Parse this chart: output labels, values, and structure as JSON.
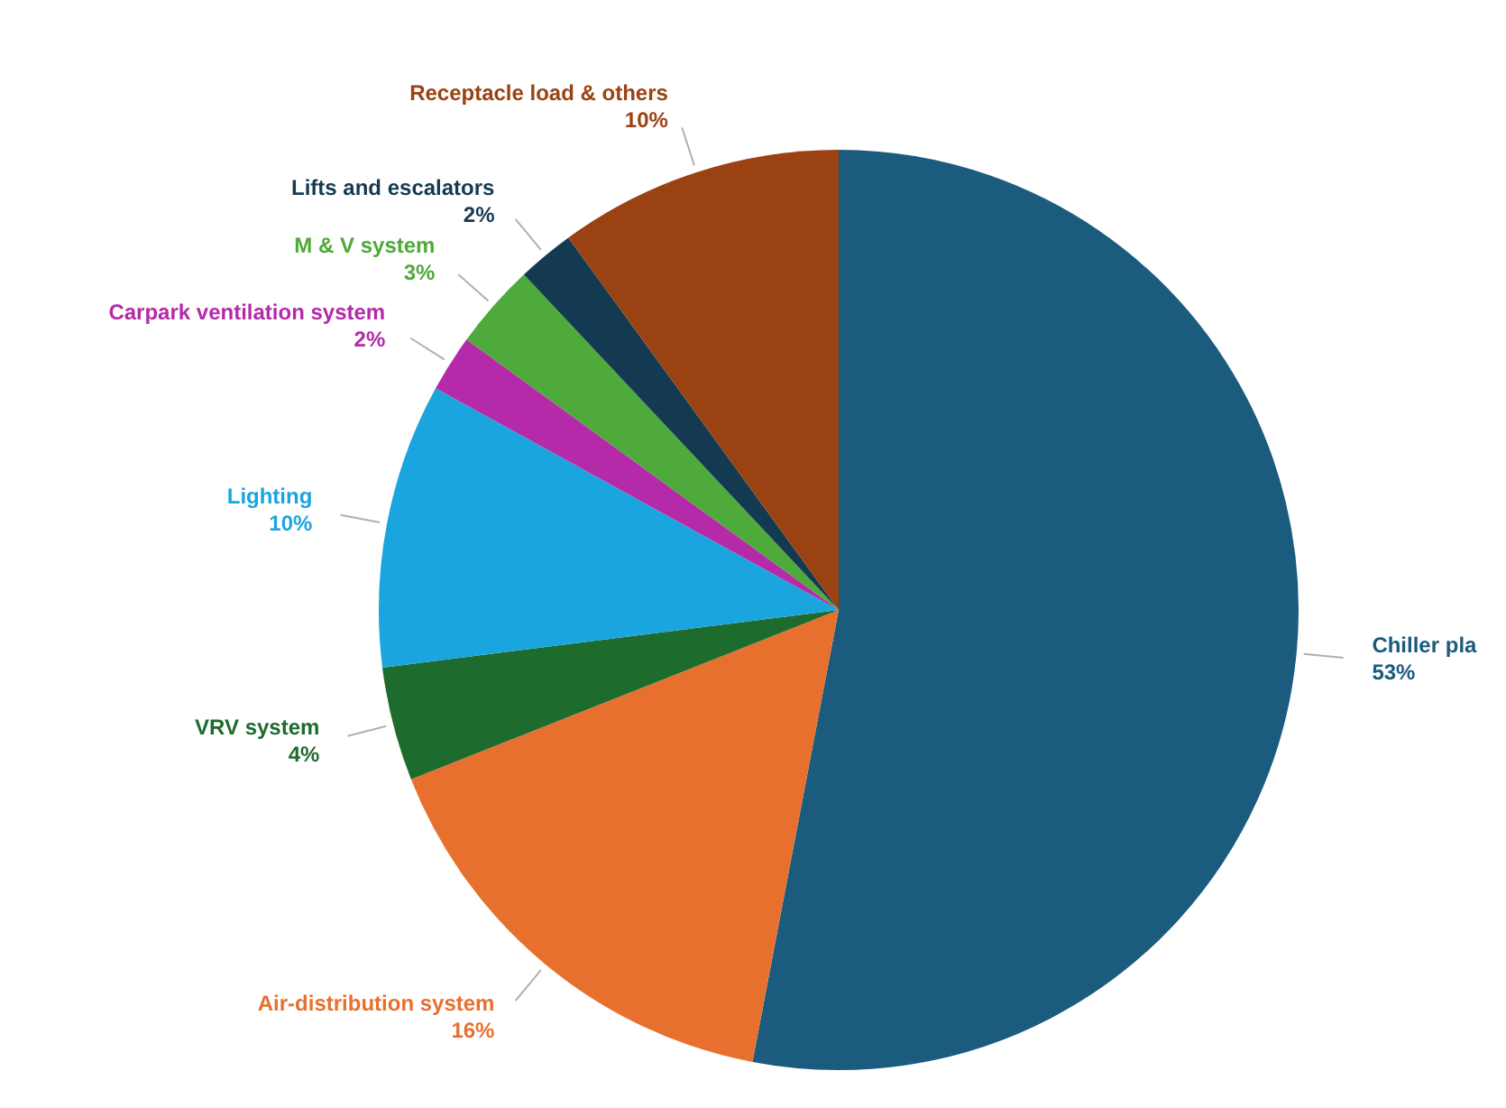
{
  "chart_data": {
    "type": "pie",
    "categories": [
      "Chiller pla",
      "Air-distribution system",
      "VRV system",
      "Lighting",
      "Carpark ventilation system",
      "M & V system",
      "Lifts and escalators",
      "Receptacle load & others"
    ],
    "values": [
      53,
      16,
      4,
      10,
      2,
      3,
      2,
      10
    ],
    "colors": [
      "#1a5b7e",
      "#e8702e",
      "#1e6b2e",
      "#1aa5df",
      "#b52aa8",
      "#4eaa3a",
      "#143a52",
      "#9a4212"
    ],
    "value_labels": [
      "53%",
      "16%",
      "4%",
      "10%",
      "2%",
      "3%",
      "2%",
      "10%"
    ]
  }
}
